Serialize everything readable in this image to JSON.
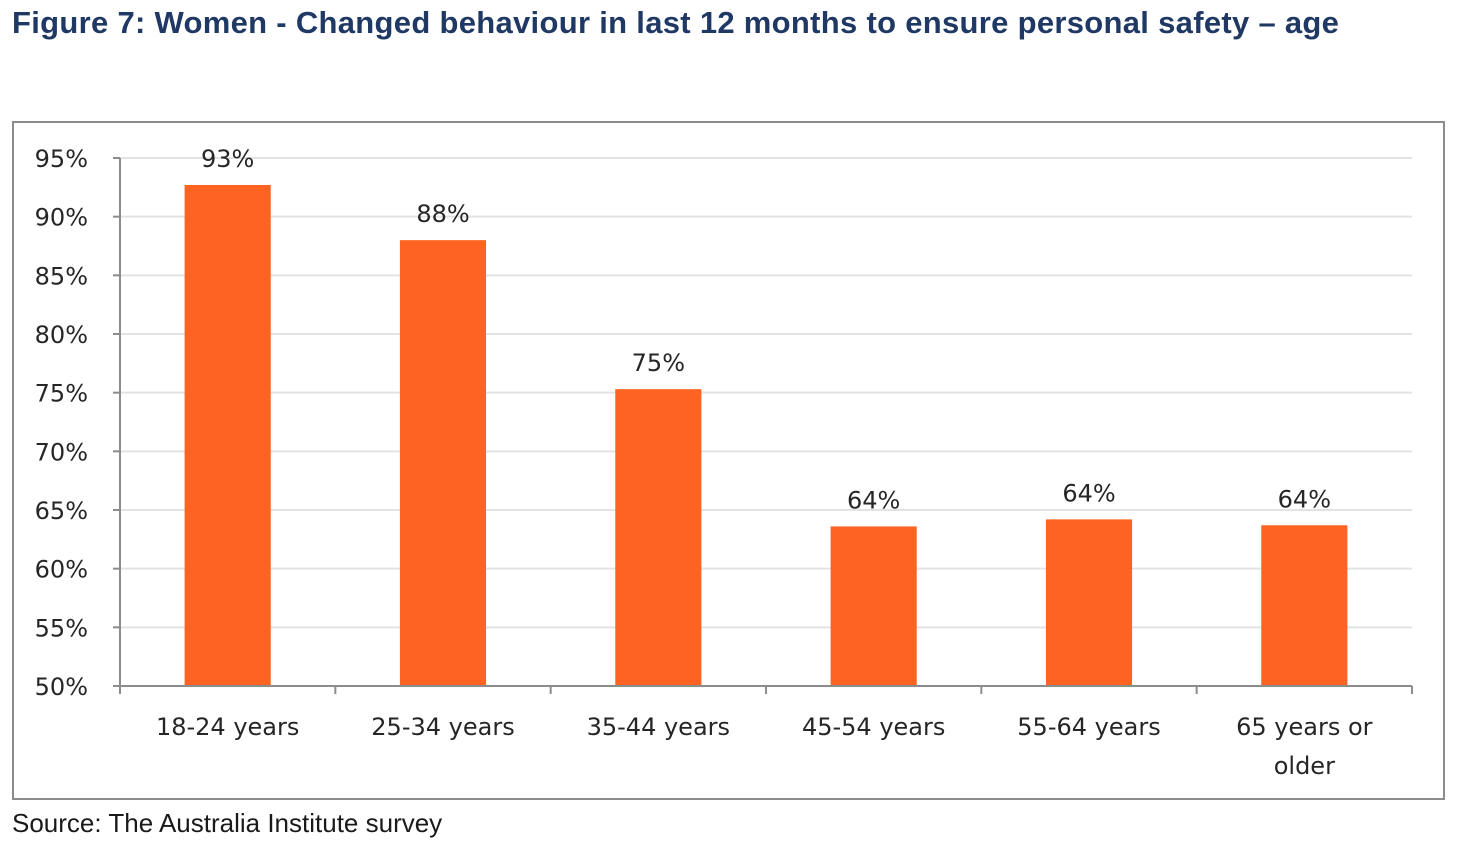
{
  "figure": {
    "title": "Figure 7: Women - Changed behaviour in last 12 months to ensure personal safety – age",
    "source": "Source: The Australia Institute survey"
  },
  "chart_data": {
    "type": "bar",
    "title": "",
    "xlabel": "",
    "ylabel": "",
    "categories": [
      "18-24 years",
      "25-34 years",
      "35-44 years",
      "45-54 years",
      "55-64 years",
      "65 years or older"
    ],
    "category_lines": [
      [
        "18-24 years"
      ],
      [
        "25-34 years"
      ],
      [
        "35-44 years"
      ],
      [
        "45-54 years"
      ],
      [
        "55-64 years"
      ],
      [
        "65 years or",
        "older"
      ]
    ],
    "values": [
      92.7,
      88.0,
      75.3,
      63.6,
      64.2,
      63.7
    ],
    "data_labels": [
      "93%",
      "88%",
      "75%",
      "64%",
      "64%",
      "64%"
    ],
    "ylim": [
      50,
      95
    ],
    "yticks": [
      50,
      55,
      60,
      65,
      70,
      75,
      80,
      85,
      90,
      95
    ],
    "ytick_labels": [
      "50%",
      "55%",
      "60%",
      "65%",
      "70%",
      "75%",
      "80%",
      "85%",
      "90%",
      "95%"
    ],
    "grid": true,
    "legend": "none",
    "colors": {
      "bar": "#ff6321",
      "grid": "#e3e3e3",
      "axis": "#8c8c8c"
    }
  }
}
